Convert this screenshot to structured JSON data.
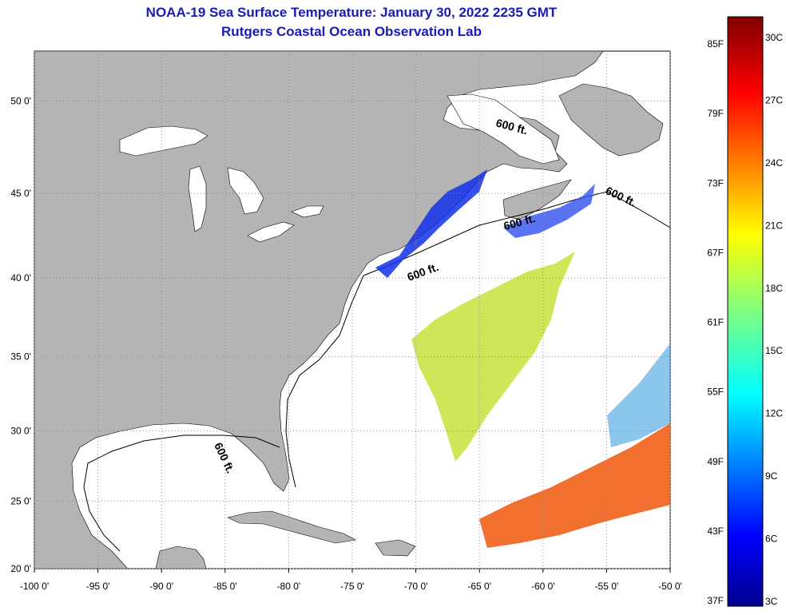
{
  "title": {
    "line1": "NOAA-19 Sea Surface Temperature:  January 30, 2022 2235 GMT",
    "line2": "Rutgers Coastal Ocean Observation Lab"
  },
  "map": {
    "lon_range": [
      -100,
      -50
    ],
    "lat_range": [
      20,
      52.5
    ],
    "lat_ticks": [
      {
        "value": 20,
        "label": "20 0'"
      },
      {
        "value": 25,
        "label": "25 0'"
      },
      {
        "value": 30,
        "label": "30 0'"
      },
      {
        "value": 35,
        "label": "35 0'"
      },
      {
        "value": 40,
        "label": "40 0'"
      },
      {
        "value": 45,
        "label": "45 0'"
      },
      {
        "value": 50,
        "label": "50 0'"
      }
    ],
    "lon_ticks": [
      {
        "value": -100,
        "label": "-100 0'"
      },
      {
        "value": -95,
        "label": "-95 0'"
      },
      {
        "value": -90,
        "label": "-90 0'"
      },
      {
        "value": -85,
        "label": "-85 0'"
      },
      {
        "value": -80,
        "label": "-80 0'"
      },
      {
        "value": -75,
        "label": "-75 0'"
      },
      {
        "value": -70,
        "label": "-70 0'"
      },
      {
        "value": -65,
        "label": "-65 0'"
      },
      {
        "value": -60,
        "label": "-60 0'"
      },
      {
        "value": -55,
        "label": "-55 0'"
      },
      {
        "value": -50,
        "label": "-50 0'"
      }
    ],
    "isobath_label": "600 ft.",
    "colors": {
      "land": "#b4b4b4",
      "ocean": "#ffffff",
      "grid": "#888888"
    }
  },
  "colorbar": {
    "fahrenheit": [
      "85F",
      "79F",
      "73F",
      "67F",
      "61F",
      "55F",
      "49F",
      "43F",
      "37F"
    ],
    "celsius": [
      "30C",
      "27C",
      "24C",
      "21C",
      "18C",
      "15C",
      "12C",
      "9C",
      "6C",
      "3C"
    ]
  }
}
